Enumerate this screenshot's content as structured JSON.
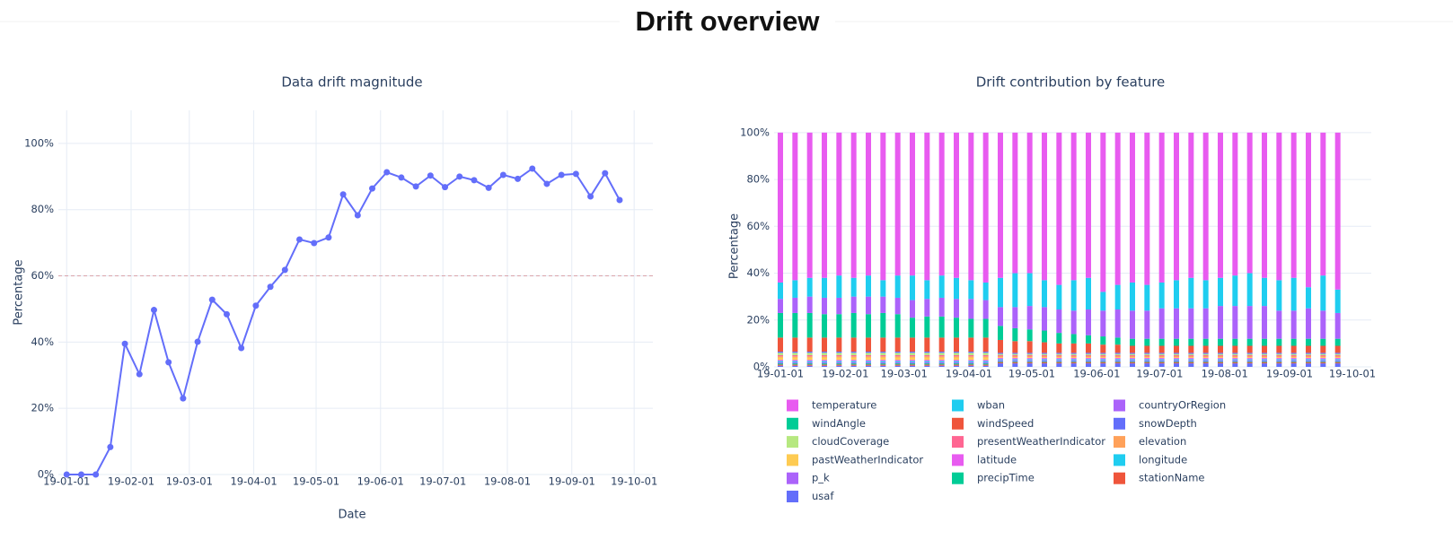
{
  "title": "Drift overview",
  "chart_data": [
    {
      "type": "line",
      "title": "Data drift magnitude",
      "x_label": "Date",
      "y_label": "Percentage",
      "x": [
        "2019-01-01",
        "2019-01-08",
        "2019-01-15",
        "2019-01-22",
        "2019-01-29",
        "2019-02-05",
        "2019-02-12",
        "2019-02-19",
        "2019-02-26",
        "2019-03-05",
        "2019-03-12",
        "2019-03-19",
        "2019-03-26",
        "2019-04-02",
        "2019-04-09",
        "2019-04-16",
        "2019-04-23",
        "2019-04-30",
        "2019-05-07",
        "2019-05-14",
        "2019-05-21",
        "2019-05-28",
        "2019-06-04",
        "2019-06-11",
        "2019-06-18",
        "2019-06-25",
        "2019-07-02",
        "2019-07-09",
        "2019-07-16",
        "2019-07-23",
        "2019-07-30",
        "2019-08-06",
        "2019-08-13",
        "2019-08-20",
        "2019-08-27",
        "2019-09-03",
        "2019-09-10",
        "2019-09-17",
        "2019-09-24"
      ],
      "values": [
        0,
        0,
        0,
        8.3,
        39.5,
        30.3,
        49.7,
        33.9,
        23,
        40.1,
        52.8,
        48.4,
        38.2,
        51,
        56.7,
        61.8,
        71,
        69.9,
        71.6,
        84.6,
        78.3,
        86.4,
        91.3,
        89.7,
        87,
        90.3,
        86.8,
        90,
        88.9,
        86.6,
        90.5,
        89.3,
        92.4,
        87.8,
        90.5,
        90.8,
        84,
        91,
        82.9
      ],
      "color": "#636efa",
      "threshold": 60,
      "threshold_color": "#d9a3ab",
      "xlim": [
        "2018-12-28",
        "2019-10-10"
      ],
      "xticks": [
        {
          "value": "2019-01-01",
          "label": "19-01-01"
        },
        {
          "value": "2019-02-01",
          "label": "19-02-01"
        },
        {
          "value": "2019-03-01",
          "label": "19-03-01"
        },
        {
          "value": "2019-04-01",
          "label": "19-04-01"
        },
        {
          "value": "2019-05-01",
          "label": "19-05-01"
        },
        {
          "value": "2019-06-01",
          "label": "19-06-01"
        },
        {
          "value": "2019-07-01",
          "label": "19-07-01"
        },
        {
          "value": "2019-08-01",
          "label": "19-08-01"
        },
        {
          "value": "2019-09-01",
          "label": "19-09-01"
        },
        {
          "value": "2019-10-01",
          "label": "19-10-01"
        }
      ],
      "ylim": [
        0,
        110
      ],
      "yticks": [
        {
          "value": 0,
          "label": "0%"
        },
        {
          "value": 20,
          "label": "20%"
        },
        {
          "value": 40,
          "label": "40%"
        },
        {
          "value": 60,
          "label": "60%"
        },
        {
          "value": 80,
          "label": "80%"
        },
        {
          "value": 100,
          "label": "100%"
        }
      ],
      "xgrid": true,
      "ygrid": true
    },
    {
      "type": "bar",
      "stacked": true,
      "title": "Drift contribution by feature",
      "y_label": "Percentage",
      "x": [
        "2019-01-01",
        "2019-01-08",
        "2019-01-15",
        "2019-01-22",
        "2019-01-29",
        "2019-02-05",
        "2019-02-12",
        "2019-02-19",
        "2019-02-26",
        "2019-03-05",
        "2019-03-12",
        "2019-03-19",
        "2019-03-26",
        "2019-04-02",
        "2019-04-09",
        "2019-04-16",
        "2019-04-23",
        "2019-04-30",
        "2019-05-07",
        "2019-05-14",
        "2019-05-21",
        "2019-05-28",
        "2019-06-04",
        "2019-06-11",
        "2019-06-18",
        "2019-06-25",
        "2019-07-02",
        "2019-07-09",
        "2019-07-16",
        "2019-07-23",
        "2019-07-30",
        "2019-08-06",
        "2019-08-13",
        "2019-08-20",
        "2019-08-27",
        "2019-09-03",
        "2019-09-10",
        "2019-09-17",
        "2019-09-24"
      ],
      "series": [
        {
          "name": "temperature",
          "color": "#e85bf0",
          "values": [
            64,
            63,
            62,
            62,
            61,
            62,
            61,
            63,
            61,
            61,
            63,
            61,
            62,
            63,
            64,
            62,
            60,
            60,
            63,
            65,
            63,
            62,
            68,
            65,
            64,
            65,
            64,
            63,
            62,
            63,
            62,
            61,
            60,
            62,
            63,
            62,
            66,
            61,
            67
          ]
        },
        {
          "name": "wban",
          "color": "#1fcdf0",
          "values": [
            7,
            7.5,
            8,
            8.5,
            9.5,
            8,
            9,
            7,
            9.5,
            10.5,
            8,
            9.5,
            9,
            8,
            7.5,
            12.5,
            14.5,
            14,
            11.5,
            10.5,
            13,
            13.5,
            8,
            10.5,
            12,
            11,
            11,
            12,
            13,
            12,
            12,
            13,
            14,
            12,
            13,
            14,
            9,
            15,
            10
          ]
        },
        {
          "name": "countryOrRegion",
          "color": "#ab63fa",
          "values": [
            6,
            6.5,
            7,
            7,
            7,
            7,
            7.5,
            7,
            7,
            7.5,
            7.5,
            8,
            8,
            8.5,
            8,
            8,
            9,
            10,
            10,
            10,
            10,
            11,
            11,
            12,
            12,
            12,
            13,
            13,
            13,
            13,
            14,
            14,
            14,
            14,
            12,
            12,
            13,
            12,
            11
          ]
        },
        {
          "name": "windAngle",
          "color": "#00cc96",
          "values": [
            10.5,
            10.5,
            10.5,
            10,
            10,
            10.5,
            10,
            10.5,
            10,
            8.5,
            9,
            9,
            8.5,
            8,
            8,
            6,
            5.5,
            5,
            5,
            4.5,
            4,
            3.5,
            3.5,
            3,
            3,
            3,
            3,
            3,
            3,
            3,
            3,
            3,
            3,
            3,
            3,
            3,
            3,
            3,
            3
          ]
        },
        {
          "name": "windSpeed",
          "color": "#ef553b",
          "values": [
            6,
            6,
            6,
            6,
            6,
            6,
            6,
            6,
            6,
            6,
            6,
            6,
            6,
            6,
            6,
            5.5,
            5,
            5,
            4.5,
            4,
            4,
            4,
            3.5,
            3.5,
            3,
            3,
            3,
            3,
            3,
            3,
            3,
            3,
            3,
            3,
            3,
            3,
            3,
            3,
            3
          ]
        },
        {
          "name": "snowDepth",
          "color": "#636efa",
          "values": [
            0.5,
            0.5,
            0.5,
            0.5,
            0.5,
            0.5,
            0.5,
            0.5,
            0.5,
            0.5,
            0.5,
            0.5,
            0.5,
            0.5,
            0.5,
            0.5,
            0.5,
            0.5,
            0.5,
            0.5,
            0.5,
            0.5,
            0.5,
            0.5,
            0.5,
            0.5,
            0.5,
            0.5,
            0.5,
            0.5,
            0.5,
            0.5,
            0.5,
            0.5,
            0.5,
            0.5,
            0.5,
            0.5,
            0.5
          ]
        },
        {
          "name": "cloudCoverage",
          "color": "#b6e880",
          "values": [
            1,
            1,
            1,
            1,
            1,
            1,
            1,
            1,
            1,
            1,
            1,
            1,
            1,
            1,
            1,
            0.5,
            0.5,
            0.5,
            0.5,
            0.5,
            0.5,
            0.5,
            0.5,
            0.5,
            0.5,
            0.5,
            0.5,
            0.5,
            0.5,
            0.5,
            0.5,
            0.5,
            0.5,
            0.5,
            0.5,
            0.5,
            0.5,
            0.5,
            0.5
          ]
        },
        {
          "name": "presentWeatherIndicator",
          "color": "#ff6692",
          "values": [
            0.5,
            0.5,
            0.5,
            0.5,
            0.5,
            0.5,
            0.5,
            0.5,
            0.5,
            0.5,
            0.5,
            0.5,
            0.5,
            0.5,
            0.5,
            0.4,
            0.4,
            0.4,
            0.4,
            0.4,
            0.4,
            0.4,
            0.4,
            0.4,
            0.4,
            0.4,
            0.4,
            0.4,
            0.4,
            0.4,
            0.4,
            0.4,
            0.4,
            0.4,
            0.4,
            0.4,
            0.4,
            0.4,
            0.4
          ]
        },
        {
          "name": "elevation",
          "color": "#ffa15a",
          "values": [
            0.5,
            0.5,
            0.5,
            0.5,
            0.5,
            0.5,
            0.5,
            0.5,
            0.5,
            0.5,
            0.5,
            0.5,
            0.5,
            0.5,
            0.5,
            0.5,
            0.5,
            0.5,
            0.5,
            0.5,
            0.5,
            0.5,
            0.5,
            0.5,
            0.5,
            0.5,
            0.5,
            0.5,
            0.5,
            0.5,
            0.5,
            0.5,
            0.5,
            0.5,
            0.5,
            0.5,
            0.5,
            0.5,
            0.5
          ]
        },
        {
          "name": "pastWeatherIndicator",
          "color": "#fecb52",
          "values": [
            1,
            1,
            1,
            1,
            1,
            1,
            1,
            1,
            1,
            1,
            1,
            1,
            1,
            1,
            1,
            0.3,
            0.3,
            0.3,
            0.3,
            0.3,
            0.3,
            0.3,
            0.3,
            0.3,
            0.3,
            0.3,
            0.3,
            0.3,
            0.3,
            0.3,
            0.3,
            0.3,
            0.3,
            0.3,
            0.3,
            0.3,
            0.3,
            0.3,
            0.3
          ]
        },
        {
          "name": "latitude",
          "color": "#e85bf0",
          "values": [
            0.5,
            0.5,
            0.5,
            0.5,
            0.5,
            0.5,
            0.5,
            0.5,
            0.5,
            0.5,
            0.5,
            0.5,
            0.5,
            0.5,
            0.5,
            0.5,
            0.5,
            0.5,
            0.5,
            0.5,
            0.5,
            0.5,
            0.5,
            0.5,
            0.5,
            0.5,
            0.5,
            0.5,
            0.5,
            0.5,
            0.5,
            0.5,
            0.5,
            0.5,
            0.5,
            0.5,
            0.5,
            0.5,
            0.5
          ]
        },
        {
          "name": "longitude",
          "color": "#1fcdf0",
          "values": [
            0.5,
            0.5,
            0.5,
            0.5,
            0.5,
            0.5,
            0.5,
            0.5,
            0.5,
            0.5,
            0.5,
            0.5,
            0.5,
            0.5,
            0.5,
            0.5,
            0.5,
            0.5,
            0.5,
            0.5,
            0.5,
            0.5,
            0.5,
            0.5,
            0.5,
            0.5,
            0.5,
            0.5,
            0.5,
            0.5,
            0.5,
            0.5,
            0.5,
            0.5,
            0.5,
            0.5,
            0.5,
            0.5,
            0.5
          ]
        },
        {
          "name": "p_k",
          "color": "#ab63fa",
          "values": [
            0.5,
            0.5,
            0.5,
            0.5,
            0.5,
            0.5,
            0.5,
            0.5,
            0.5,
            0.5,
            0.5,
            0.5,
            0.5,
            0.5,
            0.5,
            0.5,
            0.5,
            0.5,
            0.5,
            0.5,
            0.5,
            0.5,
            0.5,
            0.5,
            0.5,
            0.5,
            0.5,
            0.5,
            0.5,
            0.5,
            0.5,
            0.5,
            0.5,
            0.5,
            0.5,
            0.5,
            0.5,
            0.5,
            0.5
          ]
        },
        {
          "name": "precipTime",
          "color": "#00cc96",
          "values": [
            0.5,
            0.5,
            0.5,
            0.5,
            0.5,
            0.5,
            0.5,
            0.5,
            0.5,
            0.5,
            0.5,
            0.5,
            0.5,
            0.5,
            0.5,
            0.3,
            0.3,
            0.3,
            0.3,
            0.3,
            0.3,
            0.3,
            0.3,
            0.3,
            0.3,
            0.3,
            0.3,
            0.3,
            0.3,
            0.3,
            0.3,
            0.3,
            0.3,
            0.3,
            0.3,
            0.3,
            0.3,
            0.3,
            0.3
          ]
        },
        {
          "name": "stationName",
          "color": "#ef553b",
          "values": [
            0.5,
            0.5,
            0.5,
            0.5,
            0.5,
            0.5,
            0.5,
            0.5,
            0.5,
            0.5,
            0.5,
            0.5,
            0.5,
            0.5,
            0.5,
            0.5,
            0.5,
            0.5,
            0.5,
            0.5,
            0.5,
            0.5,
            0.5,
            0.5,
            0.5,
            0.5,
            0.5,
            0.5,
            0.5,
            0.5,
            0.5,
            0.5,
            0.5,
            0.5,
            0.5,
            0.5,
            0.5,
            0.5,
            0.5
          ]
        },
        {
          "name": "usaf",
          "color": "#636efa",
          "values": [
            0.5,
            0.5,
            0.5,
            0.5,
            0.5,
            0.5,
            0.5,
            0.5,
            0.5,
            0.5,
            0.5,
            0.5,
            0.5,
            0.5,
            0.5,
            1.5,
            1.5,
            1.5,
            1.5,
            1.5,
            1.5,
            1.5,
            1.5,
            1.5,
            1.5,
            1.5,
            1.5,
            1.5,
            1.5,
            1.5,
            1.5,
            1.5,
            1.5,
            1.5,
            1.5,
            1.5,
            1.5,
            1.5,
            1.5
          ]
        }
      ],
      "xlim": [
        "2018-12-29",
        "2019-10-10"
      ],
      "xticks": [
        {
          "value": "2019-01-01",
          "label": "19-01-01"
        },
        {
          "value": "2019-02-01",
          "label": "19-02-01"
        },
        {
          "value": "2019-03-01",
          "label": "19-03-01"
        },
        {
          "value": "2019-04-01",
          "label": "19-04-01"
        },
        {
          "value": "2019-05-01",
          "label": "19-05-01"
        },
        {
          "value": "2019-06-01",
          "label": "19-06-01"
        },
        {
          "value": "2019-07-01",
          "label": "19-07-01"
        },
        {
          "value": "2019-08-01",
          "label": "19-08-01"
        },
        {
          "value": "2019-09-01",
          "label": "19-09-01"
        },
        {
          "value": "2019-10-01",
          "label": "19-10-01"
        }
      ],
      "ylim": [
        0,
        103
      ],
      "yticks": [
        {
          "value": 0,
          "label": "0%"
        },
        {
          "value": 20,
          "label": "20%"
        },
        {
          "value": 40,
          "label": "40%"
        },
        {
          "value": 60,
          "label": "60%"
        },
        {
          "value": 80,
          "label": "80%"
        },
        {
          "value": 100,
          "label": "100%"
        }
      ],
      "xgrid": false,
      "ygrid": true,
      "legend": "bottom-left"
    }
  ]
}
